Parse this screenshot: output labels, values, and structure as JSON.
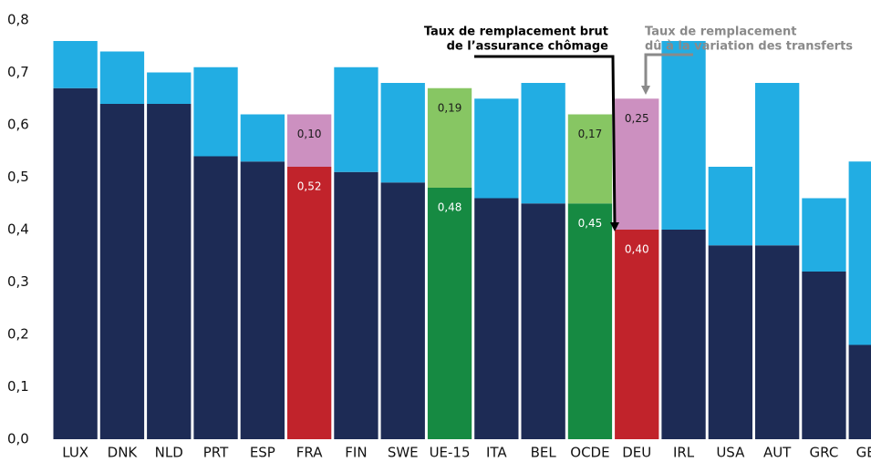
{
  "chart_data": {
    "type": "stacked_bar",
    "categories": [
      "LUX",
      "DNK",
      "NLD",
      "PRT",
      "ESP",
      "FRA",
      "FIN",
      "SWE",
      "UE-15",
      "ITA",
      "BEL",
      "OCDE",
      "DEU",
      "IRL",
      "USA",
      "AUT",
      "GRC",
      "GBR"
    ],
    "series": [
      {
        "values": [
          0.67,
          0.64,
          0.64,
          0.54,
          0.53,
          0.52,
          0.51,
          0.49,
          0.48,
          0.46,
          0.45,
          0.45,
          0.4,
          0.4,
          0.37,
          0.37,
          0.32,
          0.18
        ],
        "value_labels": [
          null,
          null,
          null,
          null,
          null,
          "0,52",
          null,
          null,
          "0,48",
          null,
          null,
          "0,45",
          "0,40",
          null,
          null,
          null,
          null,
          null
        ],
        "colors": [
          "#1d2b55",
          "#1d2b55",
          "#1d2b55",
          "#1d2b55",
          "#1d2b55",
          "#c1232b",
          "#1d2b55",
          "#1d2b55",
          "#168a42",
          "#1d2b55",
          "#1d2b55",
          "#168a42",
          "#c1232b",
          "#1d2b55",
          "#1d2b55",
          "#1d2b55",
          "#1d2b55",
          "#1d2b55"
        ],
        "label_color": "#ffffff"
      },
      {
        "values": [
          0.09,
          0.1,
          0.06,
          0.17,
          0.09,
          0.1,
          0.2,
          0.19,
          0.19,
          0.19,
          0.23,
          0.17,
          0.25,
          0.36,
          0.15,
          0.31,
          0.14,
          0.35
        ],
        "value_labels": [
          null,
          null,
          null,
          null,
          null,
          "0,10",
          null,
          null,
          "0,19",
          null,
          null,
          "0,17",
          "0,25",
          null,
          null,
          null,
          null,
          null
        ],
        "colors": [
          "#22ade3",
          "#22ade3",
          "#22ade3",
          "#22ade3",
          "#22ade3",
          "#cc90c0",
          "#22ade3",
          "#22ade3",
          "#87c663",
          "#22ade3",
          "#22ade3",
          "#87c663",
          "#cc90c0",
          "#22ade3",
          "#22ade3",
          "#22ade3",
          "#22ade3",
          "#22ade3"
        ],
        "label_color": "#1a1a1a"
      }
    ],
    "ylim": [
      0,
      0.8
    ],
    "yticks": [
      {
        "value": 0,
        "label": "0,0"
      },
      {
        "value": 0.1,
        "label": "0,1"
      },
      {
        "value": 0.2,
        "label": "0,2"
      },
      {
        "value": 0.3,
        "label": "0,3"
      },
      {
        "value": 0.4,
        "label": "0,4"
      },
      {
        "value": 0.5,
        "label": "0,5"
      },
      {
        "value": 0.6,
        "label": "0,6"
      },
      {
        "value": 0.7,
        "label": "0,7"
      },
      {
        "value": 0.8,
        "label": "0,8"
      }
    ],
    "annotations": [
      {
        "lines": [
          "Taux de remplacement brut",
          "de l’assurance chômage"
        ],
        "color": "#000000"
      },
      {
        "lines": [
          "Taux de remplacement",
          "dû à la variation des transferts"
        ],
        "color": "#8a8a8a"
      }
    ]
  }
}
